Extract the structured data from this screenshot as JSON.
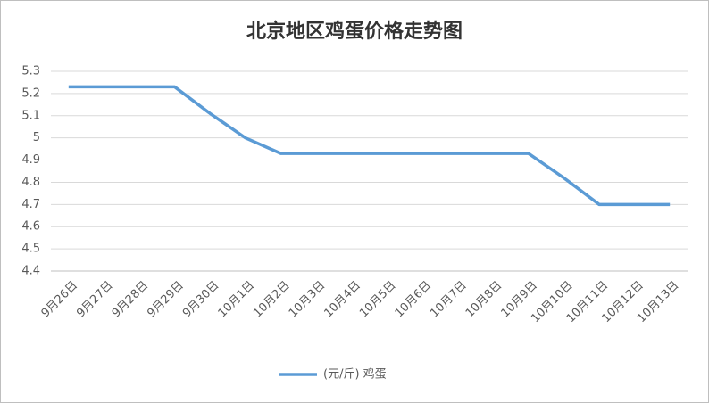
{
  "chart_data": {
    "type": "line",
    "title": "北京地区鸡蛋价格走势图",
    "categories": [
      "9月26日",
      "9月27日",
      "9月28日",
      "9月29日",
      "9月30日",
      "10月1日",
      "10月2日",
      "10月3日",
      "10月4日",
      "10月5日",
      "10月6日",
      "10月7日",
      "10月8日",
      "10月9日",
      "10月10日",
      "10月11日",
      "10月12日",
      "10月13日"
    ],
    "series": [
      {
        "name": "(元/斤) 鸡蛋",
        "color": "#5b9bd5",
        "values": [
          5.23,
          5.23,
          5.23,
          5.23,
          5.11,
          5.0,
          4.93,
          4.93,
          4.93,
          4.93,
          4.93,
          4.93,
          4.93,
          4.93,
          4.82,
          4.7,
          4.7,
          4.7
        ]
      }
    ],
    "ylim": [
      4.4,
      5.3
    ],
    "yticks": [
      4.4,
      4.5,
      4.6,
      4.7,
      4.8,
      4.9,
      5,
      5.1,
      5.2,
      5.3
    ],
    "grid": true,
    "legend": "bottom"
  }
}
